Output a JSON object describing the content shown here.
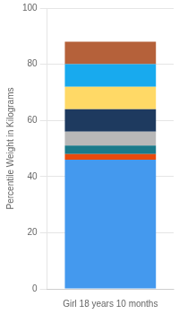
{
  "chart_data": {
    "type": "bar",
    "categories": [
      "Girl 18 years 10 months"
    ],
    "series": [
      {
        "values": [
          46
        ],
        "color": "#4499ee"
      },
      {
        "values": [
          2
        ],
        "color": "#e84a0c"
      },
      {
        "values": [
          3
        ],
        "color": "#1a7a8a"
      },
      {
        "values": [
          5
        ],
        "color": "#b8b8b8"
      },
      {
        "values": [
          8
        ],
        "color": "#1e3a5f"
      },
      {
        "values": [
          8
        ],
        "color": "#ffd966"
      },
      {
        "values": [
          8
        ],
        "color": "#18aaee"
      },
      {
        "values": [
          8
        ],
        "color": "#b5613a"
      }
    ],
    "stacked": true,
    "ylabel": "Percentile Weight in Kilograms",
    "ylim": [
      0,
      100
    ],
    "yticks": [
      0,
      20,
      40,
      60,
      80,
      100
    ],
    "grid": true
  }
}
